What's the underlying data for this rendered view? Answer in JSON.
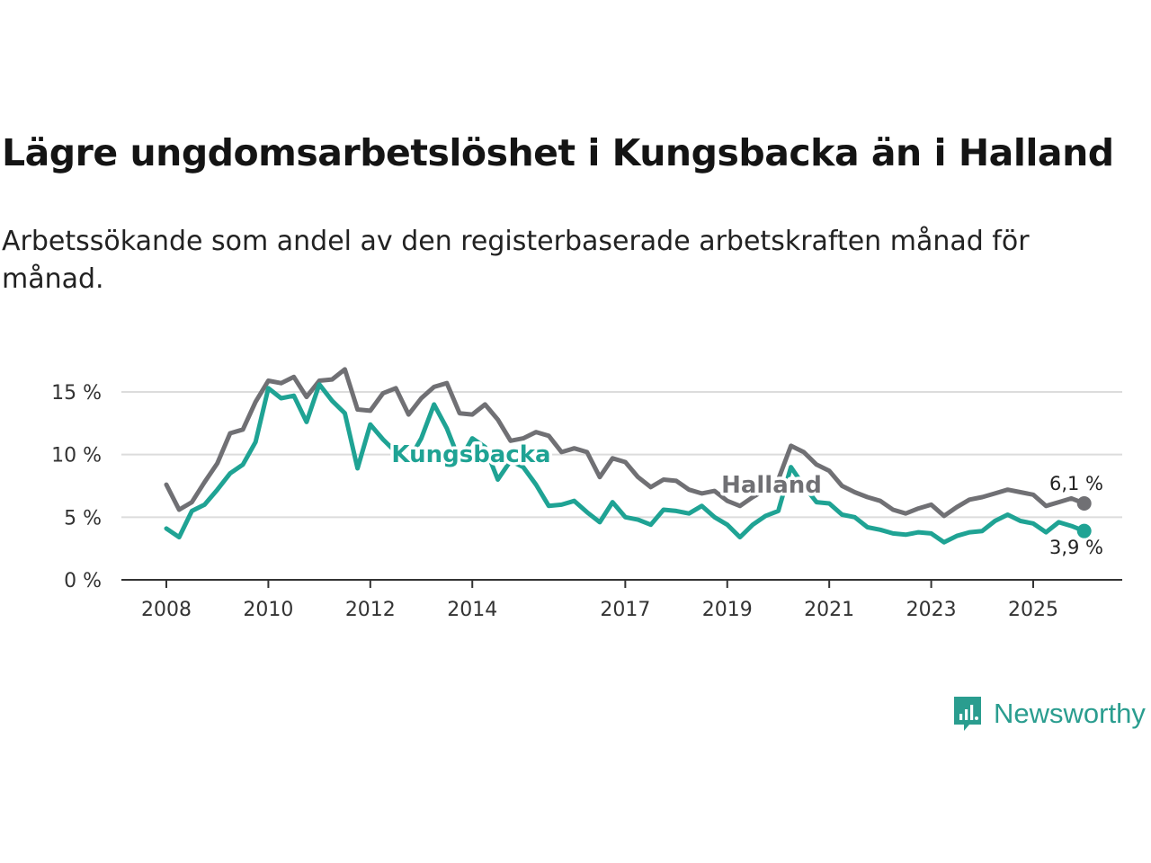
{
  "header": {
    "title": "Lägre ungdomsarbetslöshet i Kungsbacka än i Halland",
    "subtitle": "Arbetssökande som andel av den registerbaserade arbetskraften månad för månad."
  },
  "brand": {
    "name": "Newsworthy",
    "icon": "newsworthy-logo-icon",
    "color": "#2a9d8f"
  },
  "chart_data": {
    "type": "line",
    "title": "Lägre ungdomsarbetslöshet i Kungsbacka än i Halland",
    "subtitle": "Arbetssökande som andel av den registerbaserade arbetskraften månad för månad.",
    "xlabel": "",
    "ylabel": "",
    "x_range": [
      2008,
      2026.1
    ],
    "ylim": [
      0,
      17
    ],
    "yticks": [
      0,
      5,
      10,
      15
    ],
    "ytick_labels": [
      "0 %",
      "5 %",
      "10 %",
      "15 %"
    ],
    "xticks": [
      2008,
      2010,
      2012,
      2014,
      2017,
      2019,
      2021,
      2023,
      2025
    ],
    "xtick_labels": [
      "2008",
      "2010",
      "2012",
      "2014",
      "2017",
      "2019",
      "2021",
      "2023",
      "2025"
    ],
    "grid": true,
    "series": [
      {
        "name": "Halland",
        "color": "#707074",
        "label": "Halland",
        "end_label": "6,1 %",
        "points": [
          [
            2008.0,
            7.6
          ],
          [
            2008.25,
            5.6
          ],
          [
            2008.5,
            6.2
          ],
          [
            2008.75,
            7.8
          ],
          [
            2009.0,
            9.3
          ],
          [
            2009.25,
            11.7
          ],
          [
            2009.5,
            12.0
          ],
          [
            2009.75,
            14.2
          ],
          [
            2010.0,
            15.9
          ],
          [
            2010.25,
            15.7
          ],
          [
            2010.5,
            16.2
          ],
          [
            2010.75,
            14.6
          ],
          [
            2011.0,
            15.9
          ],
          [
            2011.25,
            16.0
          ],
          [
            2011.5,
            16.8
          ],
          [
            2011.75,
            13.6
          ],
          [
            2012.0,
            13.5
          ],
          [
            2012.25,
            14.9
          ],
          [
            2012.5,
            15.3
          ],
          [
            2012.75,
            13.2
          ],
          [
            2013.0,
            14.5
          ],
          [
            2013.25,
            15.4
          ],
          [
            2013.5,
            15.7
          ],
          [
            2013.75,
            13.3
          ],
          [
            2014.0,
            13.2
          ],
          [
            2014.25,
            14.0
          ],
          [
            2014.5,
            12.8
          ],
          [
            2014.75,
            11.1
          ],
          [
            2015.0,
            11.3
          ],
          [
            2015.25,
            11.8
          ],
          [
            2015.5,
            11.5
          ],
          [
            2015.75,
            10.2
          ],
          [
            2016.0,
            10.5
          ],
          [
            2016.25,
            10.2
          ],
          [
            2016.5,
            8.2
          ],
          [
            2016.75,
            9.7
          ],
          [
            2017.0,
            9.4
          ],
          [
            2017.25,
            8.2
          ],
          [
            2017.5,
            7.4
          ],
          [
            2017.75,
            8.0
          ],
          [
            2018.0,
            7.9
          ],
          [
            2018.25,
            7.2
          ],
          [
            2018.5,
            6.9
          ],
          [
            2018.75,
            7.1
          ],
          [
            2019.0,
            6.3
          ],
          [
            2019.25,
            5.9
          ],
          [
            2019.5,
            6.6
          ],
          [
            2019.75,
            7.2
          ],
          [
            2020.0,
            8.0
          ],
          [
            2020.25,
            10.7
          ],
          [
            2020.5,
            10.2
          ],
          [
            2020.75,
            9.2
          ],
          [
            2021.0,
            8.7
          ],
          [
            2021.25,
            7.5
          ],
          [
            2021.5,
            7.0
          ],
          [
            2021.75,
            6.6
          ],
          [
            2022.0,
            6.3
          ],
          [
            2022.25,
            5.6
          ],
          [
            2022.5,
            5.3
          ],
          [
            2022.75,
            5.7
          ],
          [
            2023.0,
            6.0
          ],
          [
            2023.25,
            5.1
          ],
          [
            2023.5,
            5.8
          ],
          [
            2023.75,
            6.4
          ],
          [
            2024.0,
            6.6
          ],
          [
            2024.25,
            6.9
          ],
          [
            2024.5,
            7.2
          ],
          [
            2024.75,
            7.0
          ],
          [
            2025.0,
            6.8
          ],
          [
            2025.25,
            5.9
          ],
          [
            2025.5,
            6.2
          ],
          [
            2025.75,
            6.5
          ],
          [
            2026.0,
            6.1
          ]
        ]
      },
      {
        "name": "Kungsbacka",
        "color": "#1fa394",
        "label": "Kungsbacka",
        "end_label": "3,9 %",
        "points": [
          [
            2008.0,
            4.1
          ],
          [
            2008.25,
            3.4
          ],
          [
            2008.5,
            5.5
          ],
          [
            2008.75,
            6.0
          ],
          [
            2009.0,
            7.2
          ],
          [
            2009.25,
            8.5
          ],
          [
            2009.5,
            9.2
          ],
          [
            2009.75,
            11.0
          ],
          [
            2010.0,
            15.3
          ],
          [
            2010.25,
            14.5
          ],
          [
            2010.5,
            14.7
          ],
          [
            2010.75,
            12.6
          ],
          [
            2011.0,
            15.6
          ],
          [
            2011.25,
            14.3
          ],
          [
            2011.5,
            13.3
          ],
          [
            2011.75,
            8.9
          ],
          [
            2012.0,
            12.4
          ],
          [
            2012.25,
            11.2
          ],
          [
            2012.5,
            10.2
          ],
          [
            2012.75,
            9.5
          ],
          [
            2013.0,
            11.3
          ],
          [
            2013.25,
            14.0
          ],
          [
            2013.5,
            12.1
          ],
          [
            2013.75,
            9.5
          ],
          [
            2014.0,
            11.3
          ],
          [
            2014.25,
            10.6
          ],
          [
            2014.5,
            8.0
          ],
          [
            2014.75,
            9.5
          ],
          [
            2015.0,
            9.0
          ],
          [
            2015.25,
            7.6
          ],
          [
            2015.5,
            5.9
          ],
          [
            2015.75,
            6.0
          ],
          [
            2016.0,
            6.3
          ],
          [
            2016.25,
            5.4
          ],
          [
            2016.5,
            4.6
          ],
          [
            2016.75,
            6.2
          ],
          [
            2017.0,
            5.0
          ],
          [
            2017.25,
            4.8
          ],
          [
            2017.5,
            4.4
          ],
          [
            2017.75,
            5.6
          ],
          [
            2018.0,
            5.5
          ],
          [
            2018.25,
            5.3
          ],
          [
            2018.5,
            5.9
          ],
          [
            2018.75,
            5.0
          ],
          [
            2019.0,
            4.4
          ],
          [
            2019.25,
            3.4
          ],
          [
            2019.5,
            4.4
          ],
          [
            2019.75,
            5.1
          ],
          [
            2020.0,
            5.5
          ],
          [
            2020.25,
            9.0
          ],
          [
            2020.5,
            7.5
          ],
          [
            2020.75,
            6.2
          ],
          [
            2021.0,
            6.1
          ],
          [
            2021.25,
            5.2
          ],
          [
            2021.5,
            5.0
          ],
          [
            2021.75,
            4.2
          ],
          [
            2022.0,
            4.0
          ],
          [
            2022.25,
            3.7
          ],
          [
            2022.5,
            3.6
          ],
          [
            2022.75,
            3.8
          ],
          [
            2023.0,
            3.7
          ],
          [
            2023.25,
            3.0
          ],
          [
            2023.5,
            3.5
          ],
          [
            2023.75,
            3.8
          ],
          [
            2024.0,
            3.9
          ],
          [
            2024.25,
            4.7
          ],
          [
            2024.5,
            5.2
          ],
          [
            2024.75,
            4.7
          ],
          [
            2025.0,
            4.5
          ],
          [
            2025.25,
            3.8
          ],
          [
            2025.5,
            4.6
          ],
          [
            2025.75,
            4.3
          ],
          [
            2026.0,
            3.9
          ]
        ]
      }
    ]
  }
}
